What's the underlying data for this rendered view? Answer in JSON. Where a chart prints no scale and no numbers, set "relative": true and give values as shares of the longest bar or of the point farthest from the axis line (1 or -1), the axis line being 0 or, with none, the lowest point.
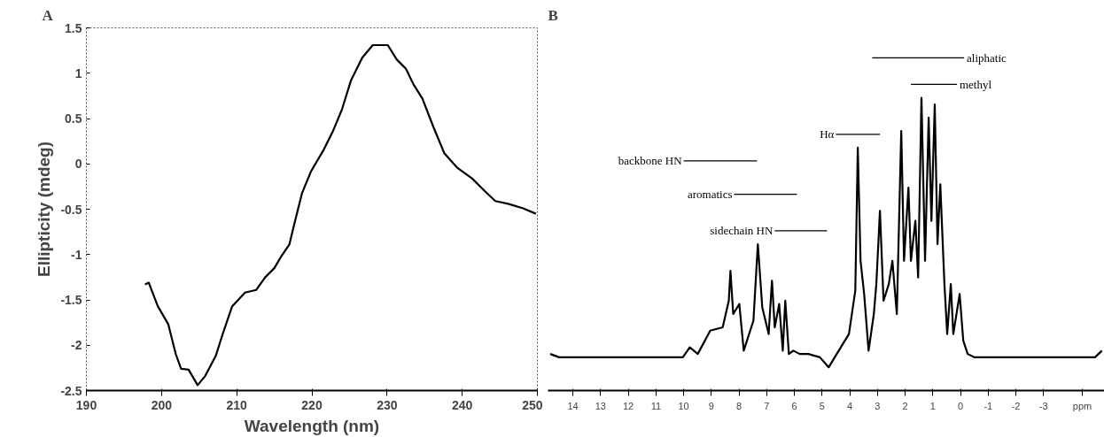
{
  "chart_data": [
    {
      "type": "line",
      "title": "A",
      "xlabel": "Wavelength (nm)",
      "ylabel": "Ellipticity (mdeg)",
      "x": [
        197.8,
        198.3,
        199.5,
        200.9,
        201.9,
        202.6,
        203.6,
        204.8,
        205.8,
        207.2,
        208.2,
        209.4,
        211.1,
        212.6,
        213.8,
        215.0,
        216.0,
        217.0,
        217.7,
        218.7,
        219.9,
        221.6,
        222.8,
        224.0,
        225.2,
        226.7,
        228.1,
        230.1,
        231.3,
        232.5,
        233.5,
        234.7,
        236.2,
        237.6,
        239.3,
        241.3,
        243.0,
        244.4,
        246.1,
        248.1,
        249.8
      ],
      "values": [
        -1.33,
        -1.31,
        -1.57,
        -1.77,
        -2.1,
        -2.26,
        -2.27,
        -2.44,
        -2.34,
        -2.12,
        -1.86,
        -1.57,
        -1.42,
        -1.39,
        -1.25,
        -1.15,
        -1.01,
        -0.89,
        -0.65,
        -0.32,
        -0.08,
        0.16,
        0.36,
        0.6,
        0.92,
        1.17,
        1.31,
        1.31,
        1.15,
        1.05,
        0.88,
        0.72,
        0.4,
        0.12,
        -0.04,
        -0.16,
        -0.3,
        -0.41,
        -0.44,
        -0.49,
        -0.55
      ],
      "color": "#000000",
      "xlim": [
        190,
        250
      ],
      "ylim": [
        -2.5,
        1.5
      ],
      "xticks": [
        190,
        200,
        210,
        220,
        230,
        240,
        250
      ],
      "yticks": [
        -2.5,
        -2,
        -1.5,
        -1,
        -0.5,
        0,
        0.5,
        1,
        1.5
      ],
      "grid": false
    },
    {
      "type": "line",
      "title": "B",
      "relative": true,
      "tick_labels": "x",
      "grid": false,
      "xlim": [
        14.9,
        -5.2
      ],
      "xticks": [
        14,
        13,
        12,
        11,
        10,
        9,
        8,
        7,
        6,
        5,
        4,
        3,
        2,
        1,
        0,
        -1,
        -2,
        -3,
        {
          "value": -4.4,
          "label": "ppm"
        }
      ],
      "series": [
        {
          "color": "#000000",
          "x": [
            14.82,
            14.5,
            10.03,
            9.78,
            9.49,
            9.04,
            8.59,
            8.37,
            8.31,
            8.21,
            7.99,
            7.83,
            7.48,
            7.32,
            7.16,
            6.93,
            6.81,
            6.71,
            6.55,
            6.42,
            6.33,
            6.2,
            6.04,
            5.81,
            5.5,
            5.08,
            4.76,
            4.47,
            4.03,
            3.8,
            3.71,
            3.61,
            3.48,
            3.32,
            3.13,
            3.04,
            2.91,
            2.78,
            2.59,
            2.46,
            2.3,
            2.14,
            2.04,
            1.88,
            1.79,
            1.63,
            1.53,
            1.41,
            1.28,
            1.15,
            1.05,
            0.93,
            0.83,
            0.73,
            0.58,
            0.48,
            0.35,
            0.26,
            0.03,
            -0.1,
            -0.26,
            -0.51,
            -4.86,
            -5.11
          ],
          "values": [
            0.11,
            0.1,
            0.1,
            0.13,
            0.11,
            0.18,
            0.19,
            0.27,
            0.36,
            0.23,
            0.26,
            0.12,
            0.21,
            0.44,
            0.25,
            0.17,
            0.33,
            0.19,
            0.26,
            0.12,
            0.27,
            0.11,
            0.12,
            0.11,
            0.11,
            0.1,
            0.07,
            0.11,
            0.17,
            0.3,
            0.73,
            0.39,
            0.29,
            0.12,
            0.23,
            0.32,
            0.54,
            0.27,
            0.32,
            0.39,
            0.23,
            0.78,
            0.39,
            0.61,
            0.39,
            0.51,
            0.34,
            0.88,
            0.39,
            0.82,
            0.51,
            0.86,
            0.44,
            0.62,
            0.32,
            0.17,
            0.32,
            0.17,
            0.29,
            0.15,
            0.11,
            0.1,
            0.1,
            0.12
          ]
        },
        {
          "name": "aliphatic",
          "color": "#000000",
          "x": [
            3.19,
            -0.13
          ],
          "values": [
            1.0,
            1.0
          ]
        },
        {
          "name": "methyl",
          "color": "#000000",
          "x": [
            1.79,
            0.13
          ],
          "values": [
            0.92,
            0.92
          ]
        },
        {
          "name": "Hα",
          "color": "#000000",
          "x": [
            4.5,
            2.91
          ],
          "values": [
            0.77,
            0.77
          ]
        },
        {
          "name": "backbone HN",
          "color": "#000000",
          "x": [
            10.0,
            7.35
          ],
          "values": [
            0.69,
            0.69
          ]
        },
        {
          "name": "aromatics",
          "color": "#000000",
          "x": [
            8.18,
            5.91
          ],
          "values": [
            0.59,
            0.59
          ]
        },
        {
          "name": "sidechain HN",
          "color": "#000000",
          "x": [
            6.71,
            4.82
          ],
          "values": [
            0.48,
            0.48
          ]
        }
      ]
    }
  ]
}
